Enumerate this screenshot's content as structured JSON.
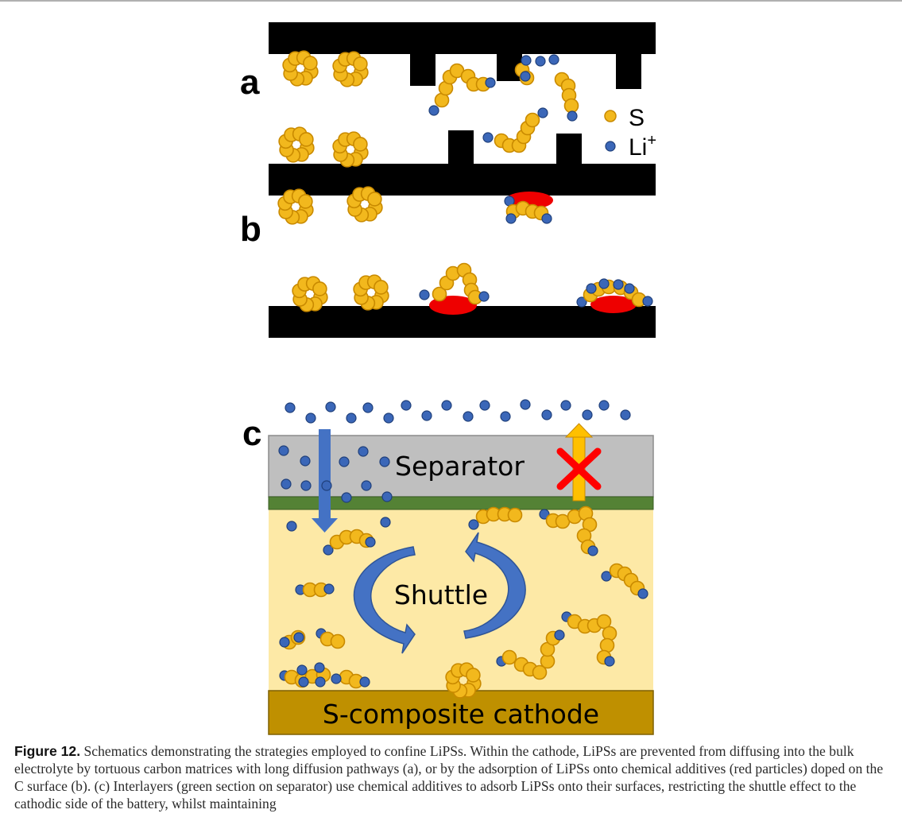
{
  "panels": {
    "a": "a",
    "b": "b",
    "c": "c"
  },
  "legend": {
    "sulfur": "S",
    "lithium": "Li",
    "lithium_sup": "+"
  },
  "panel_c": {
    "separator_label": "Separator",
    "shuttle_label": "Shuttle",
    "cathode_label": "S-composite cathode"
  },
  "colors": {
    "sulfur": "#f2b81d",
    "sulfur_edge": "#c98a00",
    "lithium": "#3b67b8",
    "lithium_edge": "#1f3f7a",
    "carbon": "#000000",
    "additive": "#ee0000",
    "separator": "#bfbfbf",
    "interlayer": "#548235",
    "electrolyte": "#fde9a6",
    "cathode": "#bf9000",
    "shuttle_arrow": "#4472c4",
    "blocked_arrow": "#ffc000",
    "block_cross": "#ff0000"
  },
  "caption": {
    "label": "Figure 12.",
    "text": " Schematics demonstrating the strategies employed to confine LiPSs. Within the cathode, LiPSs are prevented from diffusing into the bulk electrolyte by tortuous carbon matrices with long diffusion pathways (a), or by the adsorption of LiPSs onto chemical additives (red particles) doped on the C surface (b). (c) Interlayers (green section on separator) use chemical additives to adsorb LiPSs onto their surfaces, restricting the shuttle effect to the cathodic side of the battery, whilst maintaining"
  }
}
